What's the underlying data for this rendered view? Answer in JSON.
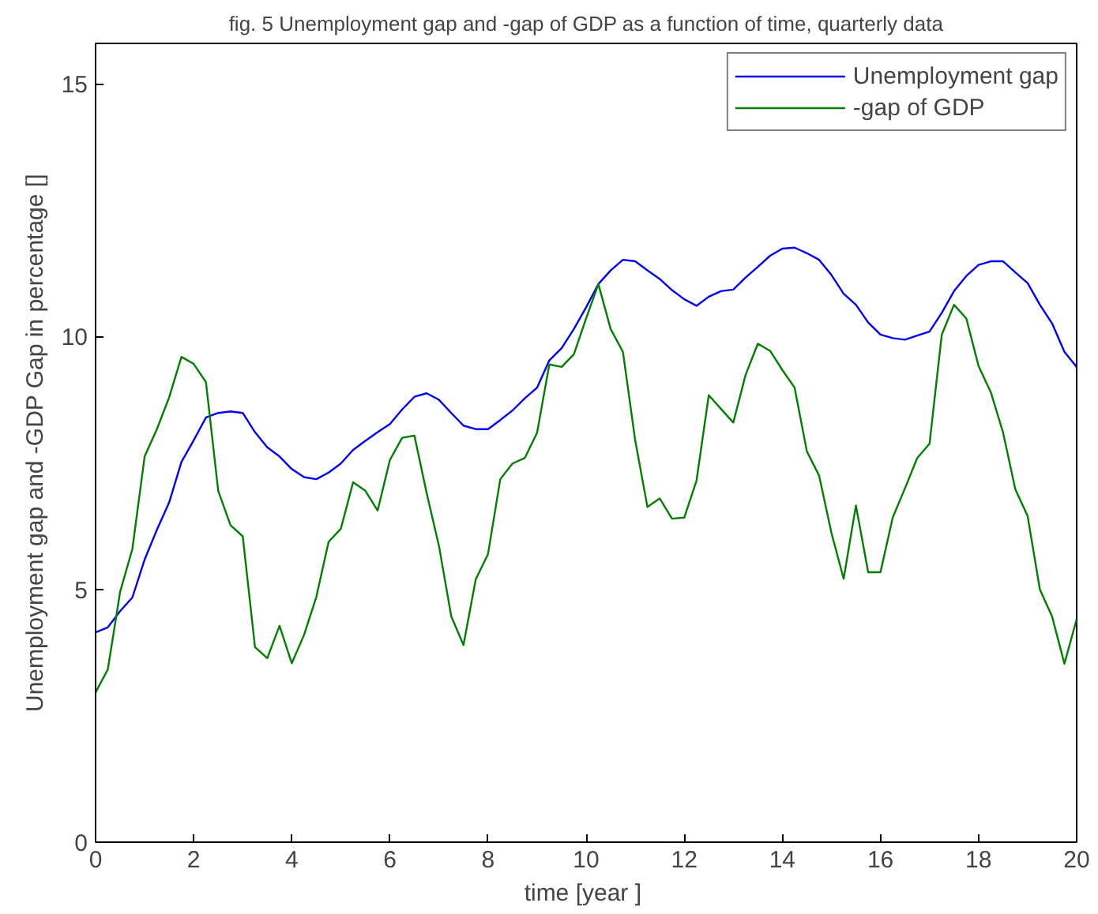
{
  "chart_data": {
    "type": "line",
    "title": "fig. 5 Unemployment gap and -gap of GDP as a function of time, quarterly data",
    "xlabel": "time  [year ]",
    "ylabel": "Unemployment gap and -GDP Gap in percentage []",
    "x": [
      0,
      0.25,
      0.5,
      0.75,
      1,
      1.25,
      1.5,
      1.75,
      2,
      2.25,
      2.5,
      2.75,
      3,
      3.25,
      3.5,
      3.75,
      4,
      4.25,
      4.5,
      4.75,
      5,
      5.25,
      5.5,
      5.75,
      6,
      6.25,
      6.5,
      6.75,
      7,
      7.25,
      7.5,
      7.75,
      8,
      8.25,
      8.5,
      8.75,
      9,
      9.25,
      9.5,
      9.75,
      10,
      10.25,
      10.5,
      10.75,
      11,
      11.25,
      11.5,
      11.75,
      12,
      12.25,
      12.5,
      12.75,
      13,
      13.25,
      13.5,
      13.75,
      14,
      14.25,
      14.5,
      14.75,
      15,
      15.25,
      15.5,
      15.75,
      16,
      16.25,
      16.5,
      16.75,
      17,
      17.25,
      17.5,
      17.75,
      18,
      18.25,
      18.5,
      18.75,
      19,
      19.25,
      19.5,
      19.75,
      20
    ],
    "series": [
      {
        "name": "Unemployment gap",
        "color": "#0000ff",
        "values": [
          4.15,
          4.25,
          4.57,
          4.84,
          5.59,
          6.18,
          6.72,
          7.52,
          7.95,
          8.4,
          8.49,
          8.52,
          8.49,
          8.11,
          7.81,
          7.63,
          7.38,
          7.22,
          7.18,
          7.31,
          7.49,
          7.76,
          7.94,
          8.11,
          8.27,
          8.56,
          8.81,
          8.88,
          8.75,
          8.49,
          8.24,
          8.17,
          8.17,
          8.35,
          8.54,
          8.78,
          8.99,
          9.53,
          9.77,
          10.15,
          10.58,
          11.04,
          11.31,
          11.52,
          11.49,
          11.31,
          11.14,
          10.92,
          10.74,
          10.61,
          10.79,
          10.9,
          10.93,
          11.17,
          11.38,
          11.6,
          11.74,
          11.76,
          11.65,
          11.52,
          11.22,
          10.85,
          10.63,
          10.28,
          10.04,
          9.97,
          9.94,
          10.02,
          10.1,
          10.47,
          10.9,
          11.2,
          11.42,
          11.49,
          11.49,
          11.27,
          11.06,
          10.63,
          10.26,
          9.7,
          9.4
        ]
      },
      {
        "name": "-gap of GDP",
        "color": "#008000",
        "values": [
          2.96,
          3.42,
          4.95,
          5.8,
          7.63,
          8.17,
          8.8,
          9.6,
          9.46,
          9.1,
          6.95,
          6.27,
          6.05,
          3.86,
          3.64,
          4.28,
          3.54,
          4.1,
          4.85,
          5.94,
          6.2,
          7.12,
          6.95,
          6.56,
          7.56,
          8.0,
          8.04,
          6.9,
          5.86,
          4.47,
          3.9,
          5.2,
          5.7,
          7.18,
          7.49,
          7.6,
          8.1,
          9.45,
          9.4,
          9.65,
          10.36,
          11.04,
          10.15,
          9.7,
          7.95,
          6.63,
          6.8,
          6.4,
          6.42,
          7.15,
          8.84,
          8.57,
          8.3,
          9.24,
          9.86,
          9.72,
          9.34,
          8.99,
          7.73,
          7.25,
          6.12,
          5.21,
          6.66,
          5.34,
          5.34,
          6.42,
          7.0,
          7.6,
          7.88,
          10.04,
          10.63,
          10.36,
          9.42,
          8.9,
          8.1,
          6.98,
          6.45,
          5.0,
          4.46,
          3.53,
          4.41
        ]
      }
    ],
    "xlim": [
      0,
      20
    ],
    "xticks": [
      0,
      2,
      4,
      6,
      8,
      10,
      12,
      14,
      16,
      18,
      20
    ],
    "ylim": [
      0,
      15.8
    ],
    "yticks": [
      0,
      5,
      10,
      15
    ],
    "grid": false,
    "legend": "top right",
    "line_style": "solid",
    "marker": "none"
  }
}
